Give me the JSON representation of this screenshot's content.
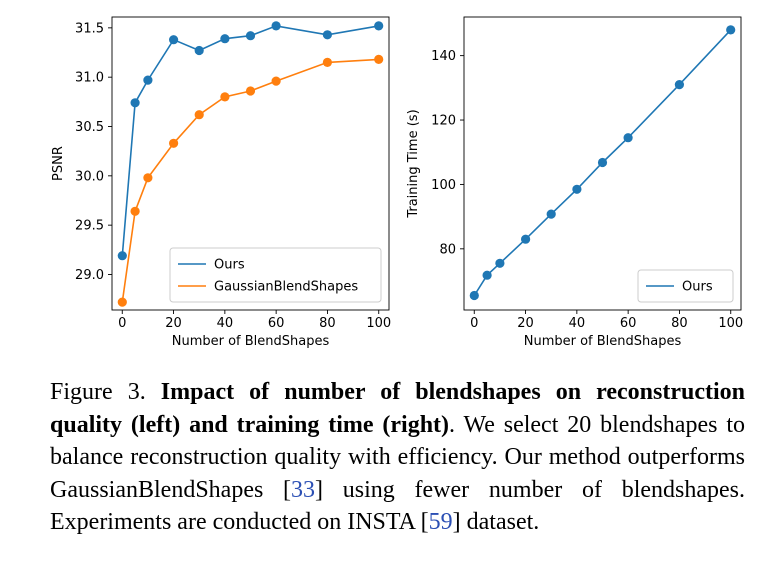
{
  "chart_data": [
    {
      "type": "line",
      "title": "",
      "xlabel": "Number of BlendShapes",
      "ylabel": "PSNR",
      "xlim": [
        -4,
        104
      ],
      "ylim": [
        28.64,
        31.61
      ],
      "xticks": [
        0,
        20,
        40,
        60,
        80,
        100
      ],
      "yticks": [
        29.0,
        29.5,
        30.0,
        30.5,
        31.0,
        31.5
      ],
      "ytick_labels": [
        "29.0",
        "29.5",
        "30.0",
        "30.5",
        "31.0",
        "31.5"
      ],
      "grid": false,
      "legend": "lower-right",
      "x": [
        0,
        5,
        10,
        20,
        30,
        40,
        50,
        60,
        80,
        100
      ],
      "series": [
        {
          "name": "Ours",
          "color": "#1f77b4",
          "values": [
            29.19,
            30.74,
            30.97,
            31.38,
            31.27,
            31.39,
            31.42,
            31.52,
            31.43,
            31.52
          ]
        },
        {
          "name": "GaussianBlendShapes",
          "color": "#ff7f0e",
          "values": [
            28.72,
            29.64,
            29.98,
            30.33,
            30.62,
            30.8,
            30.86,
            30.96,
            31.15,
            31.18
          ]
        }
      ]
    },
    {
      "type": "line",
      "title": "",
      "xlabel": "Number of BlendShapes",
      "ylabel": "Training Time (s)",
      "xlim": [
        -4,
        104
      ],
      "ylim": [
        61,
        152
      ],
      "xticks": [
        0,
        20,
        40,
        60,
        80,
        100
      ],
      "yticks": [
        80,
        100,
        120,
        140
      ],
      "ytick_labels": [
        "80",
        "100",
        "120",
        "140"
      ],
      "grid": false,
      "legend": "lower-right",
      "x": [
        0,
        5,
        10,
        20,
        30,
        40,
        50,
        60,
        80,
        100
      ],
      "series": [
        {
          "name": "Ours",
          "color": "#1f77b4",
          "values": [
            65.5,
            71.8,
            75.5,
            83.0,
            90.8,
            98.5,
            106.8,
            114.5,
            131.0,
            148.0
          ]
        }
      ]
    }
  ],
  "caption": {
    "figure_label": "Figure 3.",
    "bold_text": "Impact of number of blendshapes on reconstruction quality (left) and training time (right)",
    "text_1": ". We select 20 blendshapes to balance reconstruction quality with efficiency.  Our method outperforms GaussianBlendShapes [",
    "cite_1": "33",
    "text_2": "] using fewer number of blendshapes. Experiments are conducted on INSTA [",
    "cite_2": "59",
    "text_3": "] dataset."
  }
}
